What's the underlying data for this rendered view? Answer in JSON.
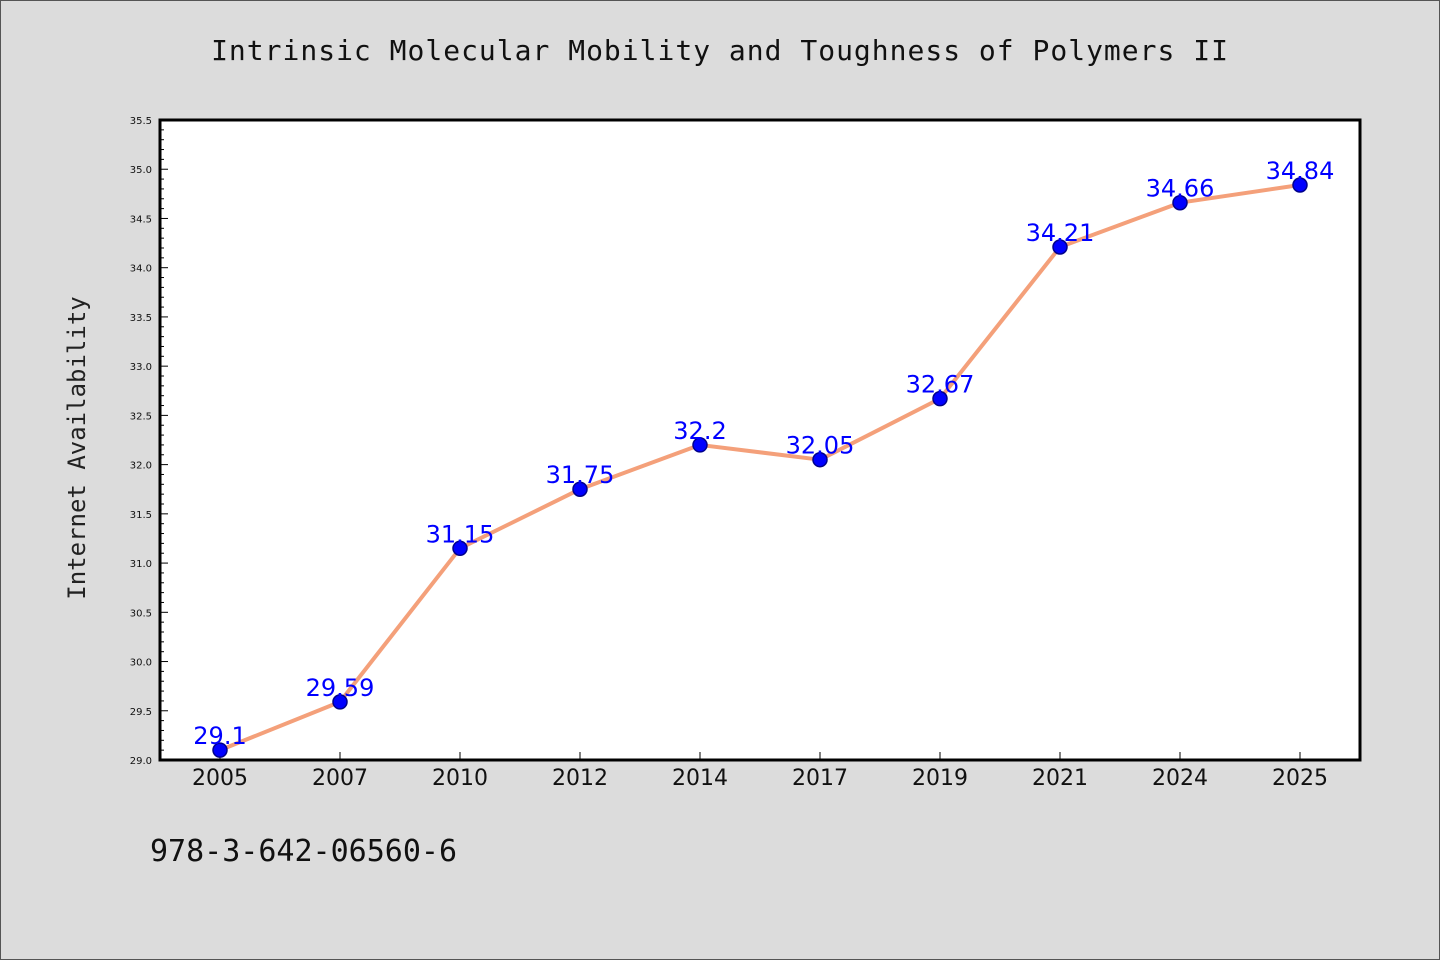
{
  "chart_data": {
    "type": "line",
    "title": "Intrinsic Molecular Mobility and Toughness of Polymers II",
    "xlabel": "",
    "ylabel": "Internet Availability",
    "categories": [
      "2005",
      "2007",
      "2010",
      "2012",
      "2014",
      "2017",
      "2019",
      "2021",
      "2024",
      "2025"
    ],
    "series": [
      {
        "values": [
          29.1,
          29.59,
          31.15,
          31.75,
          32.2,
          32.05,
          32.67,
          34.21,
          34.66,
          34.84
        ],
        "data_labels": [
          "29.1",
          "29.59",
          "31.15",
          "31.75",
          "32.2",
          "32.05",
          "32.67",
          "34.21",
          "34.66",
          "34.84"
        ]
      }
    ],
    "ylim": [
      29.0,
      35.5
    ],
    "yticks": [
      "29.0",
      "29.5",
      "30.0",
      "30.5",
      "31.0",
      "31.5",
      "32.0",
      "32.5",
      "33.0",
      "33.5",
      "34.0",
      "34.5",
      "35.0",
      "35.5"
    ],
    "grid": false,
    "legend": "none",
    "colors": {
      "line": "#f4a07a",
      "marker_fill": "#0000ff",
      "marker_edge": "#00008b",
      "data_label": "#0000ff",
      "background": "#dcdcdc",
      "plot_area": "#ffffff"
    }
  },
  "footer": {
    "isbn": "978-3-642-06560-6"
  }
}
